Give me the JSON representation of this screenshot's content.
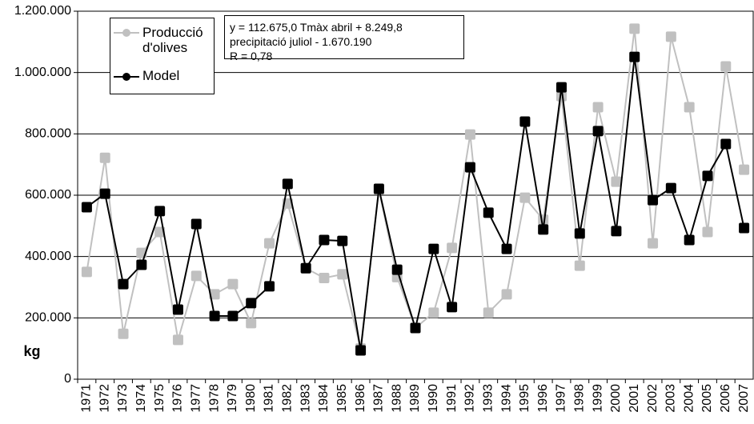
{
  "chart_data": {
    "type": "line",
    "annotations": [
      "y = 112.675,0 Tmàx abril + 8.249,8 precipitació juliol - 1.670.190",
      "R = 0,78"
    ],
    "y_label": "kg",
    "categories": [
      "1971",
      "1972",
      "1973",
      "1974",
      "1975",
      "1976",
      "1977",
      "1978",
      "1979",
      "1980",
      "1981",
      "1982",
      "1983",
      "1984",
      "1985",
      "1986",
      "1987",
      "1988",
      "1989",
      "1990",
      "1991",
      "1992",
      "1993",
      "1994",
      "1995",
      "1996",
      "1997",
      "1998",
      "1999",
      "2000",
      "2001",
      "2002",
      "2003",
      "2004",
      "2005",
      "2006",
      "2007"
    ],
    "series": [
      {
        "name": "Producció d'olives",
        "color": "#c0c0c0",
        "values": [
          350000,
          722000,
          148000,
          412000,
          480000,
          128000,
          337000,
          277000,
          310000,
          183000,
          443000,
          573000,
          362000,
          330000,
          342000,
          100000,
          618000,
          333000,
          167000,
          217000,
          428000,
          798000,
          217000,
          277000,
          592000,
          520000,
          923000,
          370000,
          887000,
          644000,
          1143000,
          443000,
          1117000,
          887000,
          480000,
          1020000,
          683000
        ]
      },
      {
        "name": "Model",
        "color": "#000000",
        "values": [
          561000,
          605000,
          310000,
          373000,
          548000,
          227000,
          506000,
          206000,
          206000,
          248000,
          303000,
          637000,
          362000,
          454000,
          451000,
          94000,
          621000,
          357000,
          167000,
          425000,
          235000,
          691000,
          543000,
          425000,
          840000,
          488000,
          952000,
          475000,
          809000,
          483000,
          1051000,
          584000,
          623000,
          454000,
          663000,
          767000,
          493000
        ]
      }
    ],
    "ylim": [
      0,
      1200000
    ],
    "yticks": [
      0,
      {
        "value": 200000,
        "label": "200.000"
      },
      {
        "value": 400000,
        "label": "400.000"
      },
      {
        "value": 600000,
        "label": "600.000"
      },
      {
        "value": 800000,
        "label": "800.000"
      },
      {
        "value": 1000000,
        "label": "1.000.000"
      },
      {
        "value": 1200000,
        "label": "1.200.000"
      }
    ],
    "grid": true
  }
}
